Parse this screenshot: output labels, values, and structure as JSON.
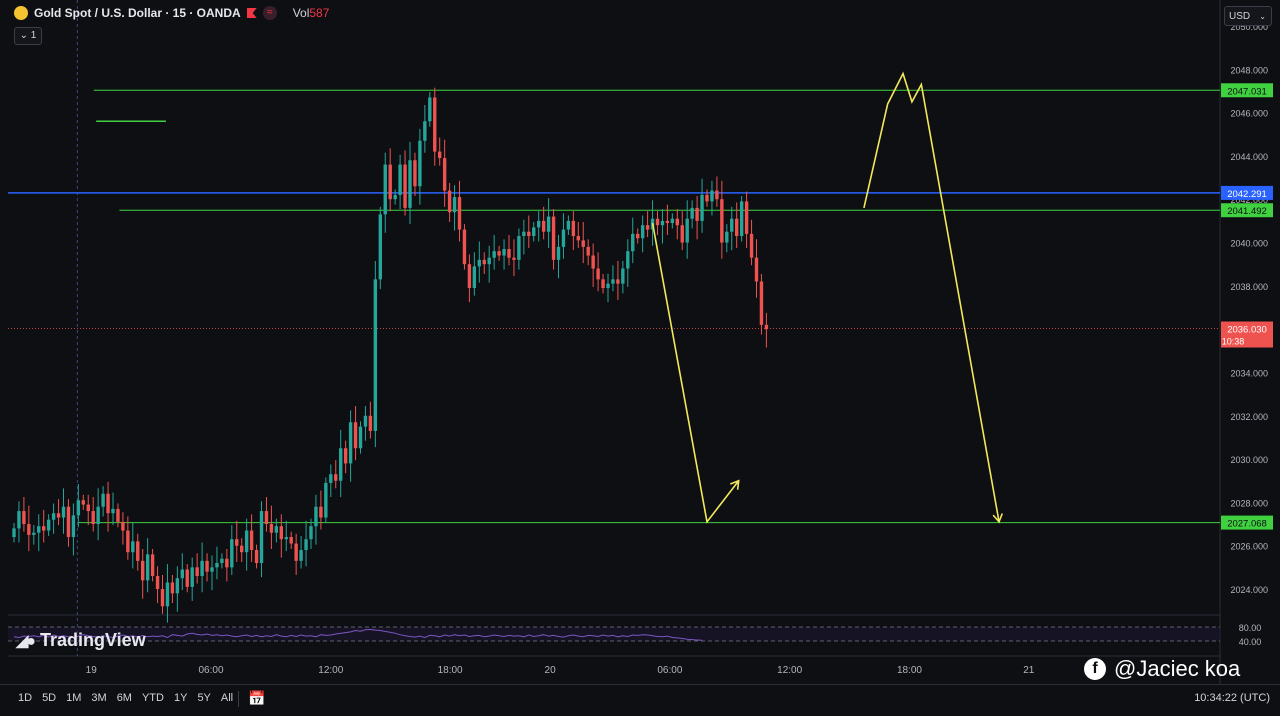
{
  "header": {
    "title": "Gold Spot / U.S. Dollar · 15 · OANDA",
    "vol_label": "Vol",
    "vol_value": "587",
    "collapse_label": "1"
  },
  "currency": "USD",
  "branding": {
    "tv_logo_text": "TradingView"
  },
  "watermark": {
    "text": "@Jaciec koa"
  },
  "bottom_bar": {
    "ranges": [
      "1D",
      "5D",
      "1M",
      "3M",
      "6M",
      "YTD",
      "1Y",
      "5Y",
      "All"
    ],
    "clock": "10:34:22 (UTC)"
  },
  "colors": {
    "background": "#0e0f13",
    "up": "#26a69a",
    "down": "#ef5350",
    "level_line": "#3fd13f",
    "blue_line": "#2962ff",
    "drawing": "#f2e85b",
    "rsi": "#7e57c2"
  },
  "chart_data": {
    "type": "candlestick",
    "symbol": "XAUUSD",
    "timeframe": "15",
    "ylim": [
      2022.8,
      2051.2
    ],
    "y_ticks": [
      "2050.000",
      "2048.000",
      "2046.000",
      "2044.000",
      "2042.000",
      "2040.000",
      "2038.000",
      "2036.000",
      "2034.000",
      "2032.000",
      "2030.000",
      "2028.000",
      "2026.000",
      "2024.000"
    ],
    "x_ticks": [
      "19",
      "06:00",
      "12:00",
      "18:00",
      "20",
      "06:00",
      "12:00",
      "18:00",
      "21"
    ],
    "last_price": "2036.030",
    "countdown": "10:38",
    "price_levels": [
      {
        "label": "2047.031",
        "value": 2047.031,
        "color": "#3fd13f"
      },
      {
        "label": "2042.291",
        "value": 2042.291,
        "color": "#2962ff"
      },
      {
        "label": "2041.492",
        "value": 2041.492,
        "color": "#3fd13f"
      },
      {
        "label": "2027.068",
        "value": 2027.068,
        "color": "#3fd13f"
      }
    ],
    "drawn_levels": [
      {
        "value": 2047.031,
        "x_start": 16.1
      },
      {
        "value": 2045.6,
        "x_start": 16.6,
        "x_end": 30.7
      },
      {
        "value": 2041.492,
        "x_start": 21.3
      },
      {
        "value": 2027.068,
        "x_start": 13.1
      }
    ],
    "blue_horizontal": 2042.291,
    "close_line": 2036.03,
    "vertical_separators": [
      -6.3,
      12.8
    ],
    "candles_close": [
      2026.8,
      2027.6,
      2027.0,
      2026.5,
      2026.6,
      2026.9,
      2026.7,
      2027.2,
      2027.5,
      2027.3,
      2027.8,
      2026.4,
      2027.4,
      2028.1,
      2027.9,
      2027.6,
      2027.0,
      2027.8,
      2028.4,
      2027.5,
      2027.7,
      2027.1,
      2026.7,
      2025.7,
      2026.2,
      2025.3,
      2024.4,
      2025.6,
      2024.6,
      2024.0,
      2023.2,
      2024.3,
      2023.8,
      2024.5,
      2024.9,
      2024.1,
      2025.0,
      2024.6,
      2025.3,
      2024.8,
      2025.0,
      2025.2,
      2025.4,
      2025.0,
      2026.3,
      2026.0,
      2025.7,
      2026.7,
      2025.8,
      2025.2,
      2027.6,
      2027.0,
      2026.6,
      2026.9,
      2026.3,
      2026.4,
      2026.1,
      2025.3,
      2025.8,
      2026.3,
      2026.9,
      2027.8,
      2027.3,
      2028.9,
      2029.3,
      2029.0,
      2030.5,
      2029.8,
      2031.7,
      2030.5,
      2031.5,
      2032.0,
      2031.3,
      2038.3,
      2041.3,
      2043.6,
      2042.0,
      2042.2,
      2043.6,
      2041.6,
      2043.8,
      2042.6,
      2044.7,
      2045.6,
      2046.7,
      2044.2,
      2043.9,
      2042.4,
      2041.4,
      2042.1,
      2040.6,
      2039.0,
      2037.9,
      2038.9,
      2039.2,
      2039.0,
      2039.3,
      2039.6,
      2039.4,
      2039.7,
      2039.3,
      2039.2,
      2040.3,
      2040.5,
      2040.3,
      2040.7,
      2041.0,
      2040.5,
      2041.2,
      2039.2,
      2039.8,
      2040.6,
      2041.0,
      2040.3,
      2040.1,
      2039.8,
      2039.4,
      2038.8,
      2038.3,
      2037.9,
      2038.1,
      2038.3,
      2038.1,
      2038.8,
      2039.6,
      2040.4,
      2040.2,
      2040.8,
      2040.6,
      2041.1,
      2040.8,
      2041.0,
      2040.9,
      2041.1,
      2040.8,
      2040.0,
      2041.1,
      2041.6,
      2041.0,
      2042.2,
      2041.9,
      2042.4,
      2042.0,
      2040.0,
      2040.5,
      2041.1,
      2040.3,
      2041.9,
      2040.4,
      2039.3,
      2038.2,
      2036.2,
      2036.0
    ],
    "open_first": 2026.4,
    "drawings": [
      {
        "type": "polyline",
        "points": [
          [
            129.0,
            2040.9
          ],
          [
            140.0,
            2027.1
          ],
          [
            146.4,
            2029.0
          ]
        ]
      },
      {
        "type": "polyline",
        "points": [
          [
            171.7,
            2041.6
          ],
          [
            176.5,
            2046.4
          ],
          [
            179.6,
            2047.8
          ],
          [
            181.4,
            2046.5
          ],
          [
            183.3,
            2047.3
          ],
          [
            199.0,
            2027.1
          ]
        ]
      }
    ],
    "rsi": {
      "levels": [
        "80.00",
        "40.00"
      ],
      "values": [
        52,
        50,
        54,
        53,
        55,
        52,
        56,
        51,
        57,
        53,
        55,
        52,
        50,
        54,
        58,
        55,
        53,
        51,
        55,
        52,
        50,
        54,
        57,
        53,
        55,
        51,
        56,
        52,
        54,
        53,
        55,
        50,
        58,
        56,
        54,
        60,
        62,
        59,
        57,
        60,
        56,
        58,
        55,
        57,
        54,
        52,
        55,
        57,
        53,
        56,
        52,
        55,
        53,
        58,
        54,
        52,
        56,
        53,
        57,
        54,
        55,
        52,
        58,
        56,
        57,
        60,
        62,
        64,
        66,
        70,
        68,
        72,
        73,
        71,
        70,
        67,
        65,
        62,
        58,
        55,
        53,
        51,
        54,
        50,
        56,
        55,
        52,
        57,
        54,
        58,
        55,
        57,
        53,
        55,
        56,
        52,
        54,
        57,
        55,
        53,
        56,
        54,
        55,
        52,
        57,
        53,
        55,
        58,
        54,
        56,
        53,
        51,
        55,
        57,
        54,
        52,
        56,
        55,
        53,
        57,
        54,
        56,
        52,
        55,
        53,
        57,
        56,
        58,
        57,
        55,
        53,
        52,
        54,
        50,
        49,
        47,
        45,
        44,
        43,
        42
      ]
    }
  }
}
